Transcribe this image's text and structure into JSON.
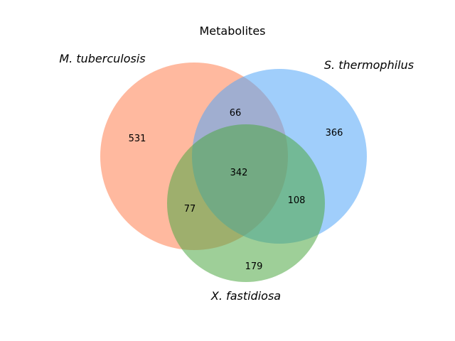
{
  "chart_data": {
    "type": "venn",
    "title": "Metabolites",
    "sets": [
      {
        "id": "A",
        "name": "M. tuberculosis",
        "color": "#ff7f50"
      },
      {
        "id": "B",
        "name": "S. thermophilus",
        "color": "#52a6f8"
      },
      {
        "id": "C",
        "name": "X. fastidiosa",
        "color": "#4ea843"
      }
    ],
    "regions": [
      {
        "sets": [
          "A"
        ],
        "value": 531
      },
      {
        "sets": [
          "B"
        ],
        "value": 366
      },
      {
        "sets": [
          "C"
        ],
        "value": 179
      },
      {
        "sets": [
          "A",
          "B"
        ],
        "value": 66
      },
      {
        "sets": [
          "A",
          "C"
        ],
        "value": 77
      },
      {
        "sets": [
          "B",
          "C"
        ],
        "value": 108
      },
      {
        "sets": [
          "A",
          "B",
          "C"
        ],
        "value": 342
      }
    ]
  }
}
